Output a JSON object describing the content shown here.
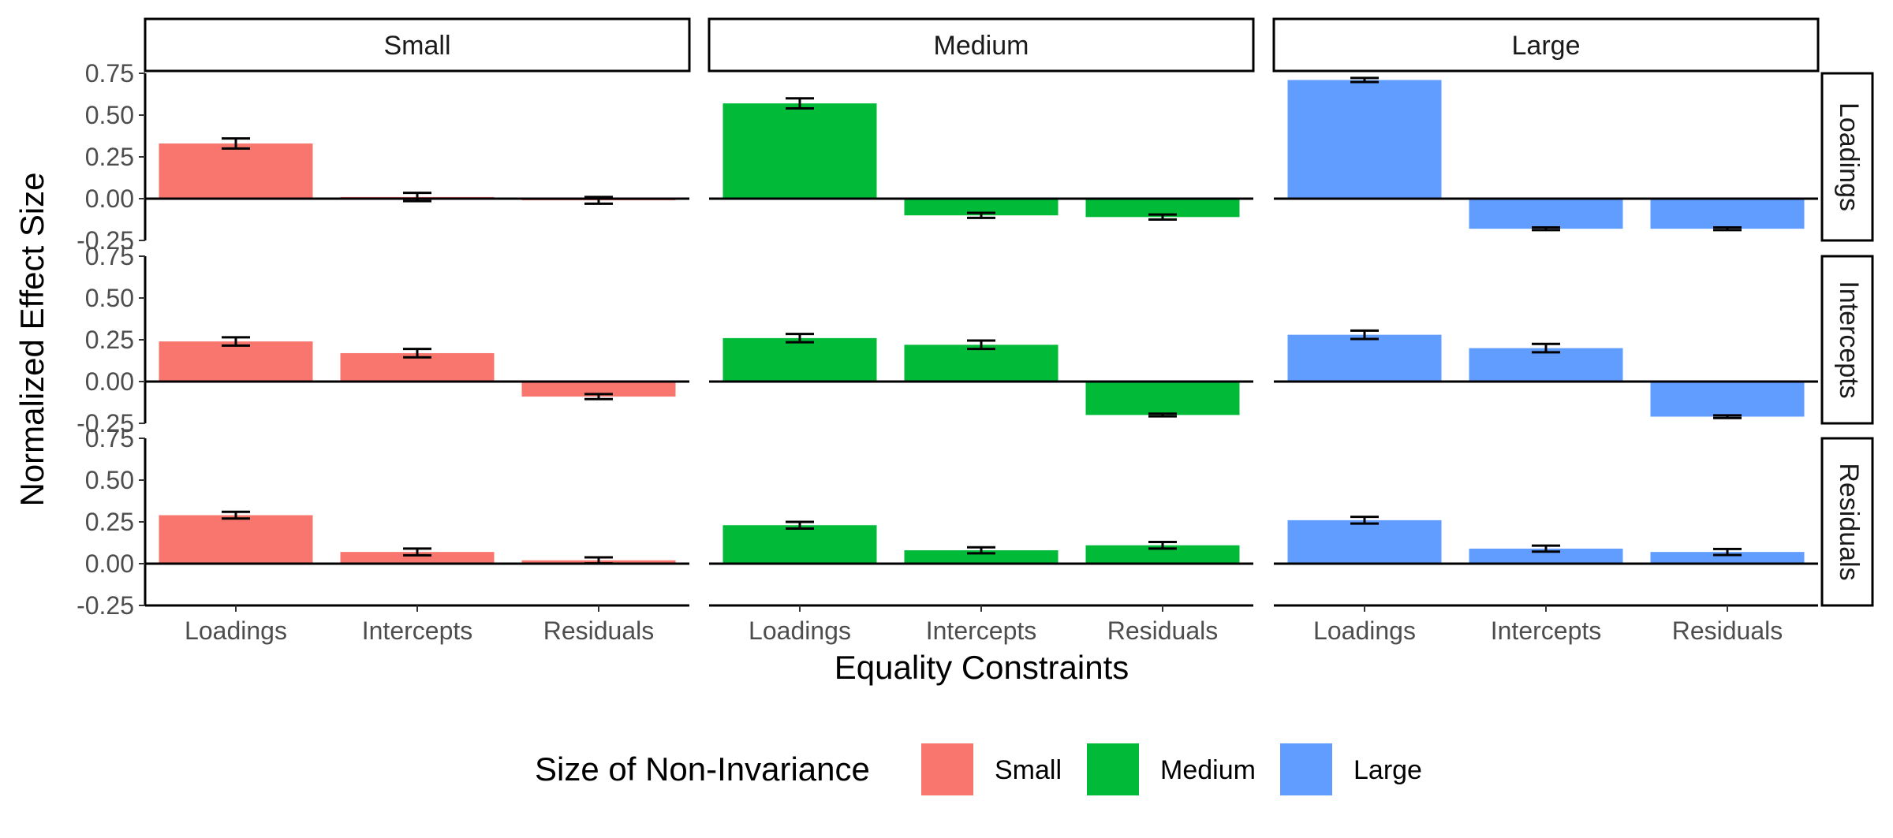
{
  "chart_data": {
    "type": "bar",
    "facet_columns": [
      "Small",
      "Medium",
      "Large"
    ],
    "facet_rows": [
      "Loadings",
      "Intercepts",
      "Residuals"
    ],
    "categories": [
      "Loadings",
      "Intercepts",
      "Residuals"
    ],
    "xlabel": "Equality Constraints",
    "ylabel": "Normalized Effect Size",
    "ylim": [
      -0.25,
      0.75
    ],
    "yticks": [
      0.75,
      0.5,
      0.25,
      0.0,
      -0.25
    ],
    "ytick_labels": [
      "0.75",
      "0.50",
      "0.25",
      "0.00",
      "-0.25"
    ],
    "grid": false,
    "legend": {
      "title": "Size of Non-Invariance",
      "position": "bottom",
      "entries": [
        {
          "name": "Small",
          "color": "#F8766D"
        },
        {
          "name": "Medium",
          "color": "#00BA38"
        },
        {
          "name": "Large",
          "color": "#619CFF"
        }
      ]
    },
    "panels": [
      {
        "row": "Loadings",
        "col": "Small",
        "values": [
          0.33,
          0.01,
          -0.01
        ],
        "errors": [
          0.03,
          0.025,
          0.02
        ]
      },
      {
        "row": "Loadings",
        "col": "Medium",
        "values": [
          0.57,
          -0.1,
          -0.11
        ],
        "errors": [
          0.03,
          0.015,
          0.015
        ]
      },
      {
        "row": "Loadings",
        "col": "Large",
        "values": [
          0.71,
          -0.18,
          -0.18
        ],
        "errors": [
          0.012,
          0.008,
          0.008
        ]
      },
      {
        "row": "Intercepts",
        "col": "Small",
        "values": [
          0.24,
          0.17,
          -0.09
        ],
        "errors": [
          0.025,
          0.025,
          0.015
        ]
      },
      {
        "row": "Intercepts",
        "col": "Medium",
        "values": [
          0.26,
          0.22,
          -0.2
        ],
        "errors": [
          0.025,
          0.025,
          0.008
        ]
      },
      {
        "row": "Intercepts",
        "col": "Large",
        "values": [
          0.28,
          0.2,
          -0.21
        ],
        "errors": [
          0.025,
          0.025,
          0.008
        ]
      },
      {
        "row": "Residuals",
        "col": "Small",
        "values": [
          0.29,
          0.07,
          0.02
        ],
        "errors": [
          0.02,
          0.02,
          0.018
        ]
      },
      {
        "row": "Residuals",
        "col": "Medium",
        "values": [
          0.23,
          0.08,
          0.11
        ],
        "errors": [
          0.02,
          0.018,
          0.02
        ]
      },
      {
        "row": "Residuals",
        "col": "Large",
        "values": [
          0.26,
          0.09,
          0.07
        ],
        "errors": [
          0.02,
          0.018,
          0.018
        ]
      }
    ]
  }
}
